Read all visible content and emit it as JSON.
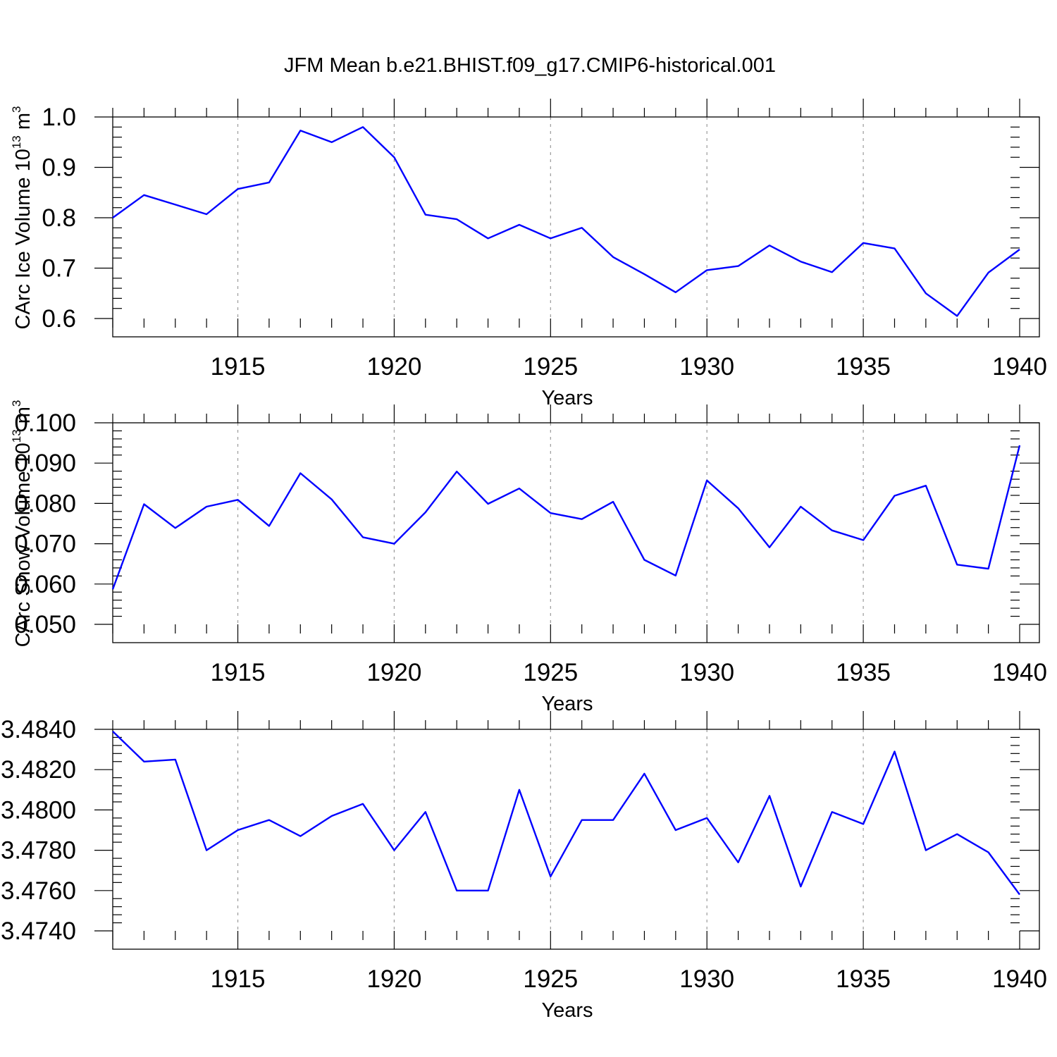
{
  "figure": {
    "title": "JFM Mean b.e21.BHIST.f09_g17.CMIP6-historical.001"
  },
  "chart_data": [
    {
      "type": "line",
      "ylabel": "CArc Ice Volume 10",
      "ylabel_exp": "13",
      "ylabel_unit": " m",
      "ylabel_unit_exp": "3",
      "xlabel": "Years",
      "xlim": [
        1911,
        1940
      ],
      "ylim": [
        0.6,
        1.0
      ],
      "yticks": [
        "0.6",
        "0.7",
        "0.8",
        "0.9",
        "1.0"
      ],
      "xticks": [
        "1915",
        "1920",
        "1925",
        "1930",
        "1935",
        "1940"
      ],
      "grid": "vertical dashed",
      "color": "#0000ff",
      "x": [
        1911,
        1912,
        1913,
        1914,
        1915,
        1916,
        1917,
        1918,
        1919,
        1920,
        1921,
        1922,
        1923,
        1924,
        1925,
        1926,
        1927,
        1928,
        1929,
        1930,
        1931,
        1932,
        1933,
        1934,
        1935,
        1936,
        1937,
        1938,
        1939,
        1940
      ],
      "values": [
        0.8,
        0.845,
        0.826,
        0.807,
        0.857,
        0.87,
        0.973,
        0.95,
        0.98,
        0.92,
        0.806,
        0.797,
        0.759,
        0.786,
        0.759,
        0.78,
        0.722,
        0.688,
        0.652,
        0.696,
        0.704,
        0.745,
        0.713,
        0.692,
        0.75,
        0.739,
        0.65,
        0.605,
        0.691,
        0.737
      ]
    },
    {
      "type": "line",
      "ylabel": "CArc Snow Volume 10",
      "ylabel_exp": "13",
      "ylabel_unit": " m",
      "ylabel_unit_exp": "3",
      "xlabel": "Years",
      "xlim": [
        1911,
        1940
      ],
      "ylim": [
        0.05,
        0.1
      ],
      "yticks": [
        "0.050",
        "0.060",
        "0.070",
        "0.080",
        "0.090",
        "0.100"
      ],
      "xticks": [
        "1915",
        "1920",
        "1925",
        "1930",
        "1935",
        "1940"
      ],
      "grid": "vertical dashed",
      "color": "#0000ff",
      "x": [
        1911,
        1912,
        1913,
        1914,
        1915,
        1916,
        1917,
        1918,
        1919,
        1920,
        1921,
        1922,
        1923,
        1924,
        1925,
        1926,
        1927,
        1928,
        1929,
        1930,
        1931,
        1932,
        1933,
        1934,
        1935,
        1936,
        1937,
        1938,
        1939,
        1940
      ],
      "values": [
        0.0587,
        0.0798,
        0.0739,
        0.0792,
        0.0809,
        0.0744,
        0.0875,
        0.081,
        0.0716,
        0.07,
        0.0778,
        0.0879,
        0.0799,
        0.0837,
        0.0776,
        0.0761,
        0.0804,
        0.066,
        0.0621,
        0.0857,
        0.0788,
        0.0691,
        0.0792,
        0.0733,
        0.0709,
        0.0819,
        0.0844,
        0.0648,
        0.0638,
        0.0944
      ]
    },
    {
      "type": "line",
      "ylabel": "",
      "xlabel": "Years",
      "xlim": [
        1911,
        1940
      ],
      "ylim": [
        3.474,
        3.484
      ],
      "yticks": [
        "3.4740",
        "3.4760",
        "3.4780",
        "3.4800",
        "3.4820",
        "3.4840"
      ],
      "xticks": [
        "1915",
        "1920",
        "1925",
        "1930",
        "1935",
        "1940"
      ],
      "grid": "vertical dashed",
      "color": "#0000ff",
      "x": [
        1911,
        1912,
        1913,
        1914,
        1915,
        1916,
        1917,
        1918,
        1919,
        1920,
        1921,
        1922,
        1923,
        1924,
        1925,
        1926,
        1927,
        1928,
        1929,
        1930,
        1931,
        1932,
        1933,
        1934,
        1935,
        1936,
        1937,
        1938,
        1939,
        1940
      ],
      "values": [
        3.4839,
        3.4824,
        3.4825,
        3.478,
        3.479,
        3.4795,
        3.4787,
        3.4797,
        3.4803,
        3.478,
        3.4799,
        3.476,
        3.476,
        3.481,
        3.4767,
        3.4795,
        3.4795,
        3.4818,
        3.479,
        3.4796,
        3.4774,
        3.4807,
        3.4762,
        3.4799,
        3.4793,
        3.4829,
        3.478,
        3.4788,
        3.4779,
        3.4758
      ]
    }
  ]
}
